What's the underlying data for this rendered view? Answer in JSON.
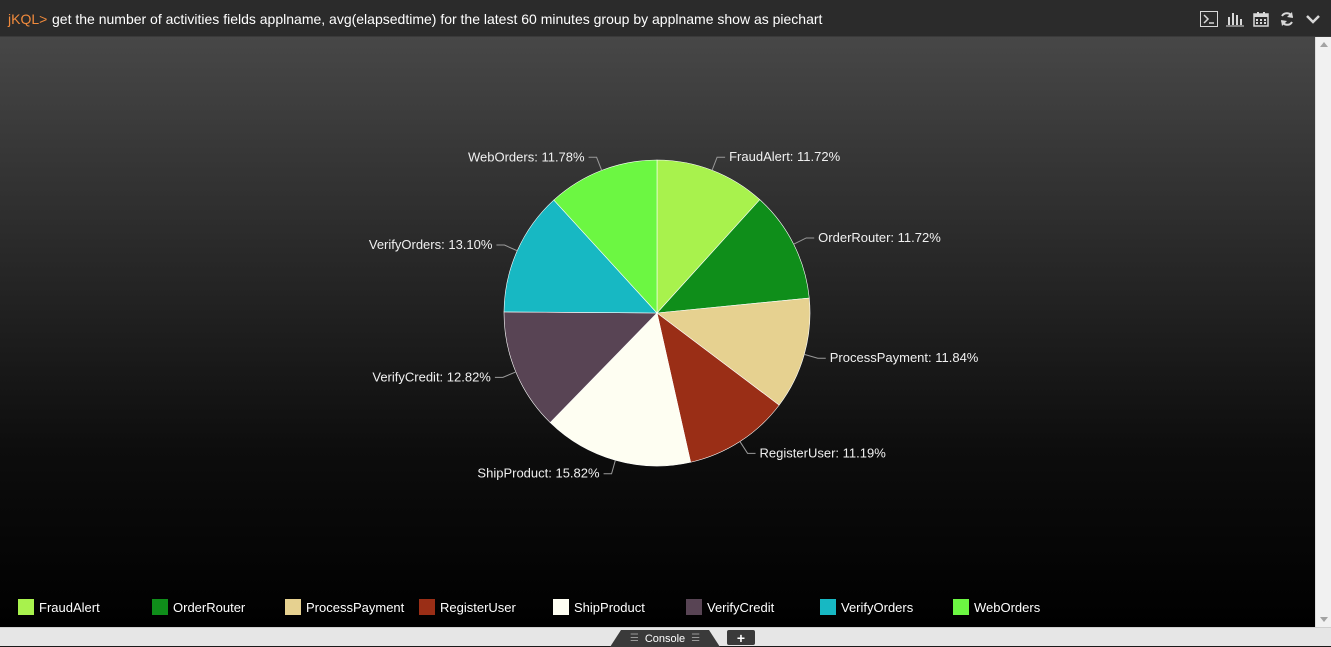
{
  "header": {
    "prompt": "jKQL>",
    "query": "get the number of activities fields applname, avg(elapsedtime) for the latest 60 minutes group by applname show as piechart"
  },
  "toolbar": {
    "icons": [
      "terminal-icon",
      "bar-chart-icon",
      "calendar-icon",
      "refresh-icon",
      "chevron-down-icon"
    ]
  },
  "chart_data": {
    "type": "pie",
    "title": "",
    "slices": [
      {
        "name": "FraudAlert",
        "value": 11.72,
        "label": "FraudAlert: 11.72%",
        "color": "#a8f24d"
      },
      {
        "name": "OrderRouter",
        "value": 11.72,
        "label": "OrderRouter: 11.72%",
        "color": "#0f8e1a"
      },
      {
        "name": "ProcessPayment",
        "value": 11.84,
        "label": "ProcessPayment: 11.84%",
        "color": "#e6d190"
      },
      {
        "name": "RegisterUser",
        "value": 11.19,
        "label": "RegisterUser: 11.19%",
        "color": "#9a2e16"
      },
      {
        "name": "ShipProduct",
        "value": 15.82,
        "label": "ShipProduct: 15.82%",
        "color": "#fefef2"
      },
      {
        "name": "VerifyCredit",
        "value": 12.82,
        "label": "VerifyCredit: 12.82%",
        "color": "#584454"
      },
      {
        "name": "VerifyOrders",
        "value": 13.1,
        "label": "VerifyOrders: 13.10%",
        "color": "#17b8c3"
      },
      {
        "name": "WebOrders",
        "value": 11.78,
        "label": "WebOrders: 11.78%",
        "color": "#6cf742"
      }
    ],
    "legend_position": "bottom"
  },
  "footer": {
    "console_label": "Console",
    "add_label": "+"
  }
}
